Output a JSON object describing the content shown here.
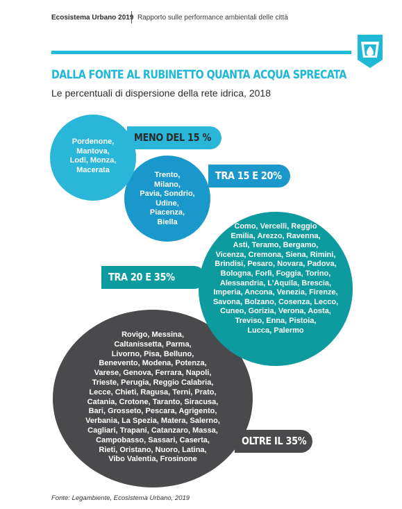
{
  "header": {
    "left": "Ecosistema Urbano 2019",
    "right": "Rapporto sulle performance ambientali delle città"
  },
  "title": "DALLA FONTE AL RUBINETTO QUANTA ACQUA SPRECATA",
  "subtitle": "Le percentuali di dispersione della rete idrica, 2018",
  "groups": [
    {
      "label": "MENO DEL 15 %",
      "cities": "Pordenone,\nMantova,\nLodi, Monza,\nMacerata",
      "color": "#29b6d8"
    },
    {
      "label": "TRA 15 E 20%",
      "cities": "Trento,\nMilano,\nPavia, Sondrio,\nUdine,\nPiacenza,\nBiella",
      "color": "#1a98cc"
    },
    {
      "label": "TRA 20 E 35%",
      "cities": "Como, Vercelli, Reggio\nEmilia, Arezzo, Ravenna,\nAsti, Teramo, Bergamo,\nVicenza, Cremona, Siena, Rimini,\nBrindisi, Pesaro, Novara, Padova,\nBologna, Forlì, Foggia, Torino,\nAlessandria, L’Aquila, Brescia,\nImperia, Ancona, Venezia, Firenze,\nSavona, Bolzano, Cosenza, Lecco,\nCuneo, Gorizia, Verona, Aosta,\nTreviso, Enna, Pistoia,\nLucca, Palermo",
      "color": "#0e9b9f"
    },
    {
      "label": "OLTRE IL 35%",
      "cities": "Rovigo, Messina,\nCaltanissetta, Parma,\nLivorno, Pisa, Belluno,\nBenevento, Modena, Potenza,\nVarese, Genova, Ferrara, Napoli,\nTrieste, Perugia, Reggio Calabria,\nLecce, Chieti, Ragusa, Terni, Prato,\nCatania, Crotone, Taranto, Siracusa,\nBari, Grosseto, Pescara, Agrigento,\nVerbania, La Spezia, Matera, Salerno,\nCagliari, Trapani, Catanzaro, Massa,\nCampobasso, Sassari, Caserta,\nRieti, Oristano, Nuoro, Latina,\nVibo Valentia, Frosinone",
      "color": "#4a4a4c"
    }
  ],
  "source": "Fonte: Legambiente, Ecosistema Urbano, 2019",
  "badge_icon": "water-drop-tap-icon",
  "accent_color": "#1fb8d6"
}
